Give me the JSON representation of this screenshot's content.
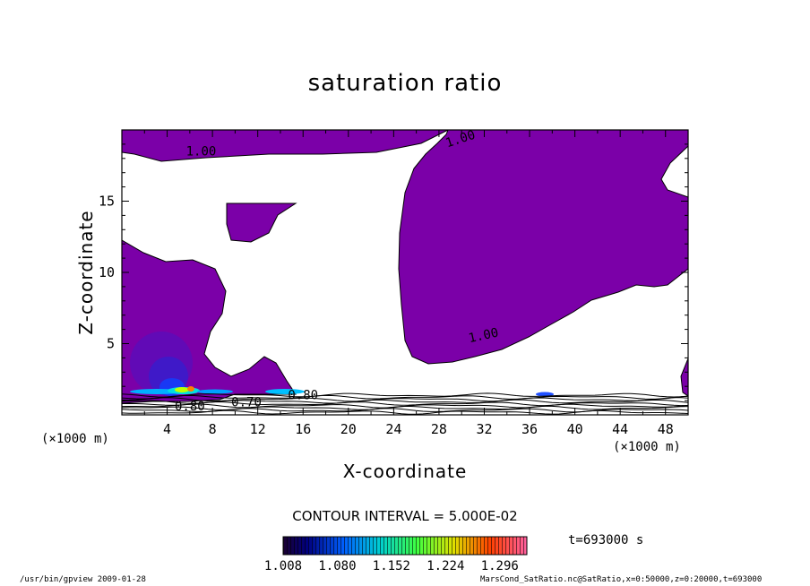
{
  "chart_data": {
    "type": "contour",
    "title": "saturation ratio",
    "xlabel": "X-coordinate",
    "ylabel": "Z-coordinate",
    "x_unit_label": "(×1000 m)",
    "xlim": [
      0,
      50
    ],
    "ylim": [
      0,
      20
    ],
    "x_ticks": [
      4,
      8,
      12,
      16,
      20,
      24,
      28,
      32,
      36,
      40,
      44,
      48
    ],
    "y_ticks": [
      5,
      10,
      15
    ],
    "contour_labels": [
      {
        "text": "1.00",
        "x": 7.0,
        "y": 18.2
      },
      {
        "text": "1.00",
        "x": 30.0,
        "y": 19.1
      },
      {
        "text": "1.00",
        "x": 32.0,
        "y": 5.3
      },
      {
        "text": "0.80",
        "x": 6.0,
        "y": 0.3
      },
      {
        "text": "0.70",
        "x": 11.0,
        "y": 0.6
      },
      {
        "text": "0.80",
        "x": 16.0,
        "y": 1.1
      }
    ],
    "contour_interval_text": "CONTOUR INTERVAL = 5.000E-02",
    "colorbar": {
      "ticks": [
        "1.008",
        "1.080",
        "1.152",
        "1.224",
        "1.296"
      ],
      "min": 1.008,
      "max": 1.332
    },
    "time_label": "t=693000 s",
    "fill_color": "#7b00a8"
  },
  "footer": {
    "left": "/usr/bin/gpview  2009-01-28",
    "right": "MarsCond_SatRatio.nc@SatRatio,x=0:50000,z=0:20000,t=693000"
  }
}
